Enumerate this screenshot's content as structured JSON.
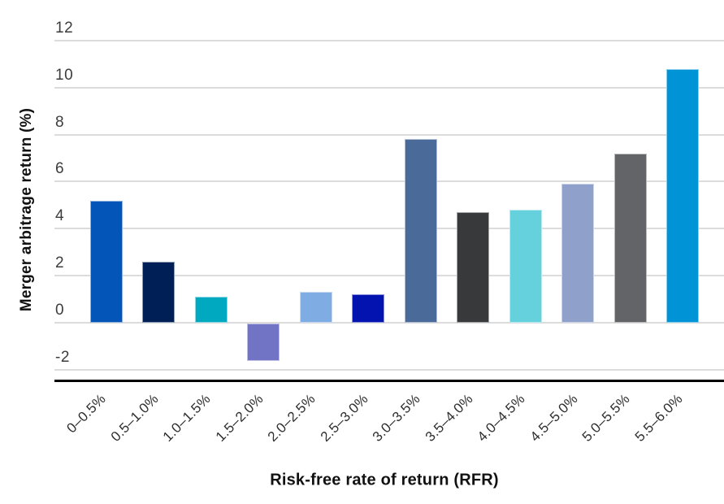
{
  "chart_data": {
    "type": "bar",
    "title": "",
    "xlabel": "Risk-free rate of return (RFR)",
    "ylabel": "Merger arbitrage return (%)",
    "categories": [
      "0–0.5%",
      "0.5–1.0%",
      "1.0–1.5%",
      "1.5–2.0%",
      "2.0–2.5%",
      "2.5–3.0%",
      "3.0–3.5%",
      "3.5–4.0%",
      "4.0–4.5%",
      "4.5–5.0%",
      "5.0–5.5%",
      "5.5–6.0%"
    ],
    "values": [
      5.2,
      2.6,
      1.1,
      -1.6,
      1.3,
      1.2,
      7.8,
      4.7,
      4.8,
      5.9,
      7.2,
      10.8
    ],
    "bar_colors": [
      "#0455B8",
      "#001F57",
      "#00A8C0",
      "#7173C4",
      "#7EACE3",
      "#0213AF",
      "#4A6A99",
      "#37393A",
      "#65D1DC",
      "#8FA0CA",
      "#626468",
      "#0094D6"
    ],
    "yticks": [
      12,
      10,
      8,
      6,
      4,
      2,
      0,
      -2
    ],
    "ylim": [
      -2.5,
      13
    ],
    "grid": "horizontal",
    "gridline_color": "#dcdcdc",
    "axis_line_color": "#000000",
    "tick_label_color": "#3c3c3c",
    "legend": "none"
  }
}
